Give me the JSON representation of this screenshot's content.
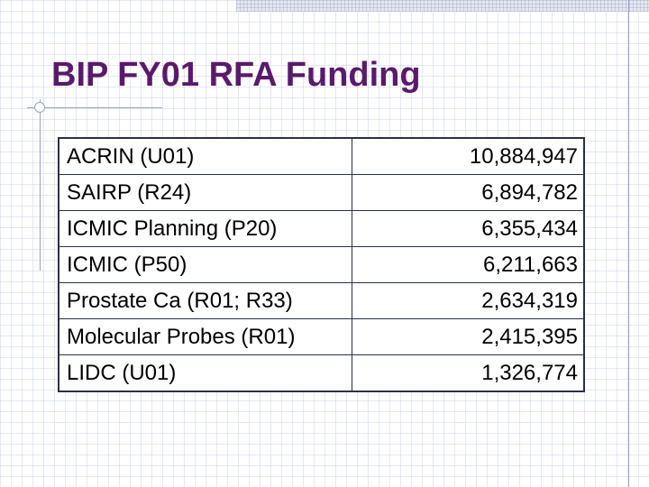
{
  "slide": {
    "title": "BIP FY01 RFA Funding"
  },
  "table": {
    "rows": [
      {
        "program": "ACRIN (U01)",
        "amount": "10,884,947"
      },
      {
        "program": "SAIRP (R24)",
        "amount": "6,894,782"
      },
      {
        "program": "ICMIC Planning (P20)",
        "amount": "6,355,434"
      },
      {
        "program": "ICMIC (P50)",
        "amount": "6,211,663"
      },
      {
        "program": "Prostate Ca (R01; R33)",
        "amount": "2,634,319"
      },
      {
        "program": "Molecular Probes (R01)",
        "amount": "2,415,395"
      },
      {
        "program": "LIDC (U01)",
        "amount": "1,326,774"
      }
    ]
  },
  "colors": {
    "title": "#5a1a6b",
    "text": "#000000",
    "border": "#2a2f4a",
    "grid": "#b4bedc"
  }
}
